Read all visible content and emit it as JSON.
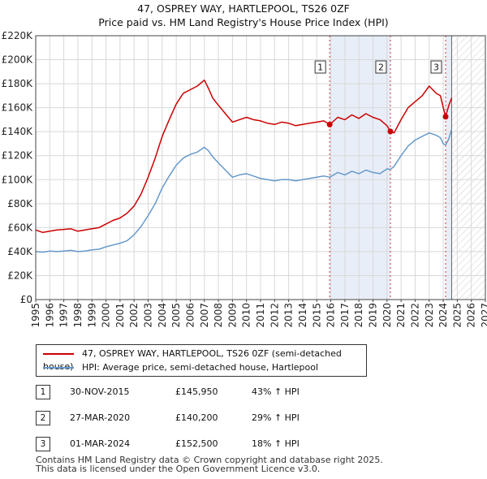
{
  "title": {
    "line1": "47, OSPREY WAY, HARTLEPOOL, TS26 0ZF",
    "line2": "Price paid vs. HM Land Registry's House Price Index (HPI)"
  },
  "colors": {
    "property": "#cc0000",
    "hpi": "#6699cc",
    "band": "#e8eef8",
    "grid": "#d8d8d8",
    "sale_vline": "#cc3333"
  },
  "legend": {
    "property_label": "47, OSPREY WAY, HARTLEPOOL, TS26 0ZF (semi-detached house)",
    "hpi_label": "HPI: Average price, semi-detached house, Hartlepool"
  },
  "sales": [
    {
      "num": "1",
      "date": "30-NOV-2015",
      "price": "£145,950",
      "hpi_change": "43% ↑ HPI"
    },
    {
      "num": "2",
      "date": "27-MAR-2020",
      "price": "£140,200",
      "hpi_change": "29% ↑ HPI"
    },
    {
      "num": "3",
      "date": "01-MAR-2024",
      "price": "£152,500",
      "hpi_change": "18% ↑ HPI"
    }
  ],
  "footer": {
    "line1": "Contains HM Land Registry data © Crown copyright and database right 2025.",
    "line2": "This data is licensed under the Open Government Licence v3.0."
  },
  "chart_data": {
    "type": "line",
    "title": "Price paid vs. HM Land Registry's House Price Index (HPI)",
    "xlabel": "",
    "ylabel": "",
    "xlim": [
      1995,
      2027
    ],
    "ylim": [
      0,
      220000
    ],
    "x_ticks": [
      "1995",
      "1996",
      "1997",
      "1998",
      "1999",
      "2000",
      "2001",
      "2002",
      "2003",
      "2004",
      "2005",
      "2006",
      "2007",
      "2008",
      "2009",
      "2010",
      "2011",
      "2012",
      "2013",
      "2014",
      "2015",
      "2016",
      "2017",
      "2018",
      "2019",
      "2020",
      "2021",
      "2022",
      "2023",
      "2024",
      "2025",
      "2026",
      "2027"
    ],
    "y_ticks": [
      {
        "value": 0,
        "label": "£0"
      },
      {
        "value": 20000,
        "label": "£20K"
      },
      {
        "value": 40000,
        "label": "£40K"
      },
      {
        "value": 60000,
        "label": "£60K"
      },
      {
        "value": 80000,
        "label": "£80K"
      },
      {
        "value": 100000,
        "label": "£100K"
      },
      {
        "value": 120000,
        "label": "£120K"
      },
      {
        "value": 140000,
        "label": "£140K"
      },
      {
        "value": 160000,
        "label": "£160K"
      },
      {
        "value": 180000,
        "label": "£180K"
      },
      {
        "value": 200000,
        "label": "£200K"
      },
      {
        "value": 220000,
        "label": "£220K"
      }
    ],
    "grid": true,
    "shaded_periods": [
      {
        "from": 2015.92,
        "to": 2020.24
      },
      {
        "from": 2024.17,
        "to": 2024.6
      }
    ],
    "forecast_start": 2024.6,
    "sale_markers": [
      {
        "label": "1",
        "x": 2015.92,
        "value": 145950
      },
      {
        "label": "2",
        "x": 2020.24,
        "value": 140200
      },
      {
        "label": "3",
        "x": 2024.17,
        "value": 152500
      }
    ],
    "series": [
      {
        "name": "47, OSPREY WAY, HARTLEPOOL, TS26 0ZF (semi-detached house)",
        "color": "#cc0000",
        "x": [
          1995.0,
          1995.5,
          1996.0,
          1996.5,
          1997.0,
          1997.5,
          1998.0,
          1998.5,
          1999.0,
          1999.5,
          2000.0,
          2000.5,
          2001.0,
          2001.5,
          2002.0,
          2002.5,
          2003.0,
          2003.5,
          2004.0,
          2004.5,
          2005.0,
          2005.5,
          2006.0,
          2006.5,
          2007.0,
          2007.3,
          2007.6,
          2008.0,
          2008.5,
          2009.0,
          2009.5,
          2010.0,
          2010.5,
          2011.0,
          2011.5,
          2012.0,
          2012.5,
          2013.0,
          2013.5,
          2014.0,
          2014.5,
          2015.0,
          2015.5,
          2015.92,
          2016.5,
          2017.0,
          2017.5,
          2018.0,
          2018.5,
          2019.0,
          2019.5,
          2020.0,
          2020.24,
          2020.5,
          2021.0,
          2021.5,
          2022.0,
          2022.5,
          2023.0,
          2023.5,
          2023.8,
          2024.0,
          2024.17,
          2024.4,
          2024.6
        ],
        "values": [
          58000,
          56000,
          57000,
          58000,
          58500,
          59000,
          57000,
          58000,
          59000,
          60000,
          63000,
          66000,
          68000,
          72000,
          78000,
          88000,
          102000,
          118000,
          136000,
          150000,
          163000,
          172000,
          175000,
          178000,
          183000,
          176000,
          168000,
          162000,
          155000,
          148000,
          150000,
          152000,
          150000,
          149000,
          147000,
          146000,
          148000,
          147000,
          145000,
          146000,
          147000,
          148000,
          149000,
          145950,
          152000,
          150000,
          154000,
          151000,
          155000,
          152000,
          150000,
          145000,
          140200,
          139000,
          150000,
          160000,
          165000,
          170000,
          178000,
          172000,
          170000,
          160000,
          152500,
          162000,
          168000
        ]
      },
      {
        "name": "HPI: Average price, semi-detached house, Hartlepool",
        "color": "#6699cc",
        "x": [
          1995.0,
          1995.5,
          1996.0,
          1996.5,
          1997.0,
          1997.5,
          1998.0,
          1998.5,
          1999.0,
          1999.5,
          2000.0,
          2000.5,
          2001.0,
          2001.5,
          2002.0,
          2002.5,
          2003.0,
          2003.5,
          2004.0,
          2004.5,
          2005.0,
          2005.5,
          2006.0,
          2006.5,
          2007.0,
          2007.3,
          2007.6,
          2008.0,
          2008.5,
          2009.0,
          2009.5,
          2010.0,
          2010.5,
          2011.0,
          2011.5,
          2012.0,
          2012.5,
          2013.0,
          2013.5,
          2014.0,
          2014.5,
          2015.0,
          2015.5,
          2015.92,
          2016.5,
          2017.0,
          2017.5,
          2018.0,
          2018.5,
          2019.0,
          2019.5,
          2020.0,
          2020.24,
          2020.5,
          2021.0,
          2021.5,
          2022.0,
          2022.5,
          2023.0,
          2023.5,
          2023.8,
          2024.0,
          2024.17,
          2024.4,
          2024.6
        ],
        "values": [
          40000,
          39500,
          40500,
          40000,
          40500,
          41000,
          40000,
          40500,
          41500,
          42000,
          44000,
          45500,
          47000,
          49000,
          54000,
          61000,
          70000,
          80000,
          93000,
          103000,
          112000,
          118000,
          121000,
          123000,
          127000,
          124000,
          119000,
          114000,
          108000,
          102000,
          104000,
          105000,
          103000,
          101000,
          100000,
          99000,
          100000,
          100000,
          99000,
          100000,
          101000,
          102000,
          103000,
          102000,
          106000,
          104000,
          107000,
          105000,
          108000,
          106000,
          105000,
          109000,
          108500,
          111000,
          120000,
          128000,
          133000,
          136000,
          139000,
          137000,
          135000,
          130000,
          129000,
          134000,
          142000
        ]
      }
    ]
  }
}
